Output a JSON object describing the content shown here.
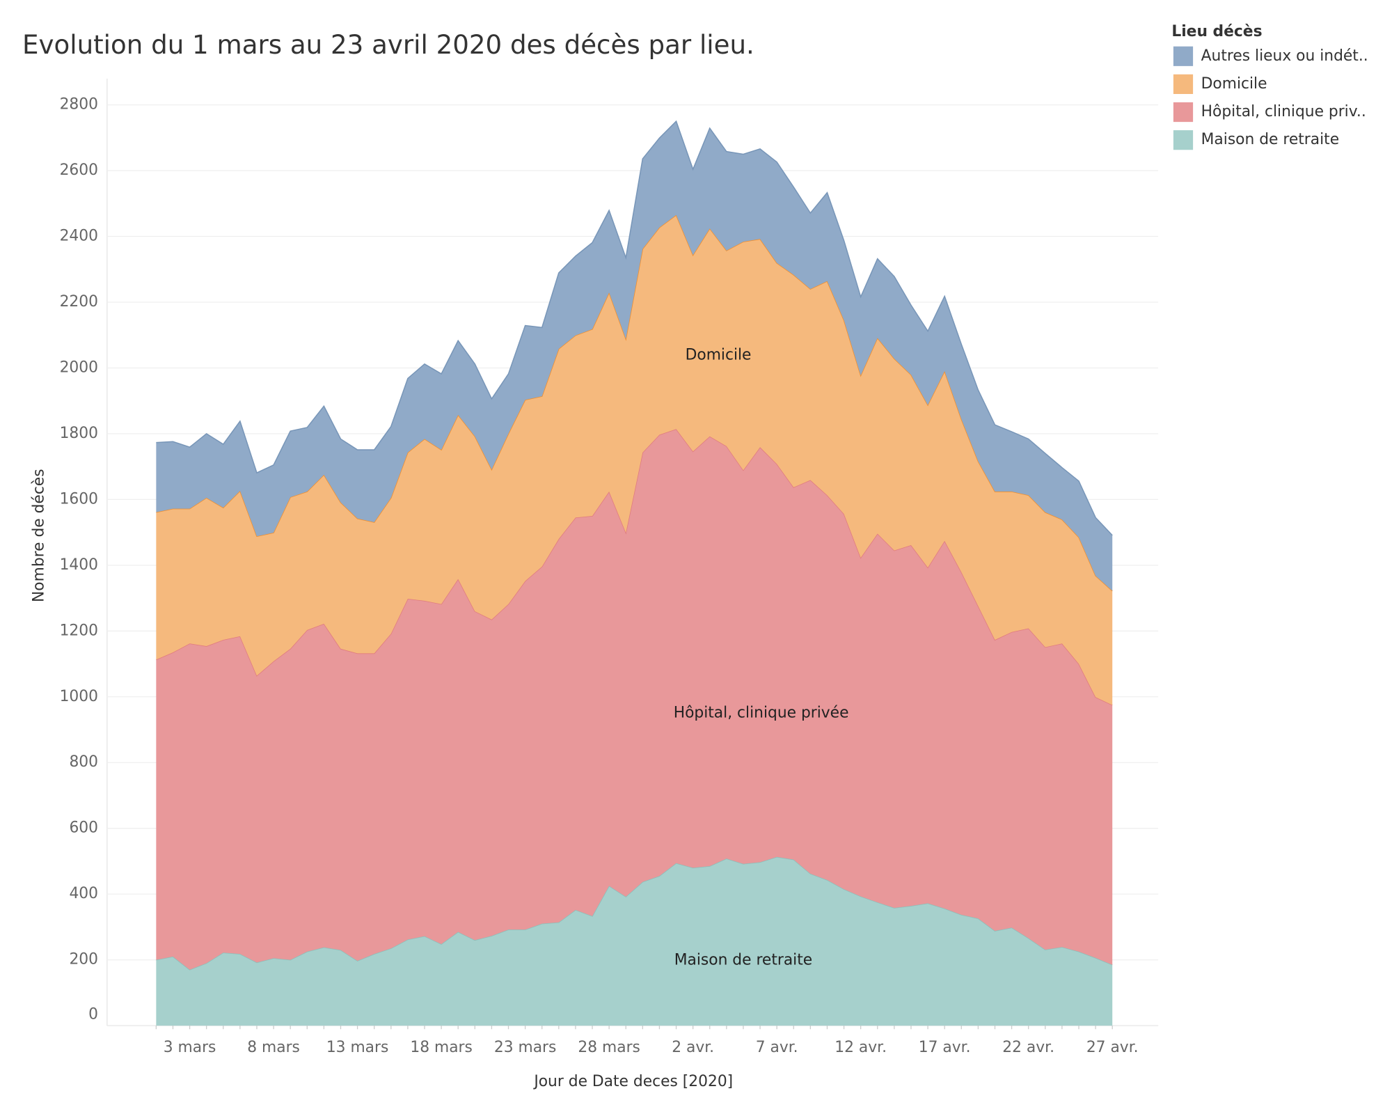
{
  "chart_data": {
    "type": "stacked-area",
    "title": "Evolution du 1 mars au 23 avril 2020 des décès par lieu.",
    "x_label": "Jour de Date deces [2020]",
    "y_label": "Nombre de décès",
    "legend_title": "Lieu décès",
    "categories": [
      null,
      null,
      "3 mars",
      null,
      null,
      null,
      null,
      "8 mars",
      null,
      null,
      null,
      null,
      "13 mars",
      null,
      null,
      null,
      null,
      "18 mars",
      null,
      null,
      null,
      null,
      "23 mars",
      null,
      null,
      null,
      null,
      "28 mars",
      null,
      null,
      null,
      null,
      "2 avr.",
      null,
      null,
      null,
      null,
      "7 avr.",
      null,
      null,
      null,
      null,
      "12 avr.",
      null,
      null,
      null,
      null,
      "17 avr.",
      null,
      null,
      null,
      null,
      "22 avr.",
      null,
      null,
      null,
      null,
      "27 avr."
    ],
    "series": [
      {
        "name": "Autres lieux ou indét..",
        "color": "#90aac8",
        "line": "#7896b8",
        "values": [
          212,
          204,
          187,
          195,
          193,
          212,
          193,
          206,
          201,
          195,
          209,
          193,
          209,
          220,
          217,
          225,
          228,
          231,
          226,
          220,
          215,
          182,
          226,
          209,
          231,
          241,
          263,
          250,
          247,
          274,
          272,
          285,
          261,
          305,
          301,
          266,
          274,
          307,
          267,
          231,
          269,
          242,
          239,
          241,
          250,
          212,
          225,
          228,
          228,
          217,
          203,
          182,
          171,
          179,
          158,
          171,
          177,
          169
        ]
      },
      {
        "name": "Domicile",
        "color": "#f5b97d",
        "line": "#f28e2b",
        "values": [
          448,
          437,
          410,
          451,
          402,
          442,
          424,
          391,
          461,
          421,
          453,
          445,
          410,
          399,
          413,
          445,
          492,
          469,
          499,
          532,
          456,
          518,
          551,
          518,
          578,
          554,
          568,
          605,
          589,
          619,
          630,
          651,
          597,
          632,
          595,
          695,
          633,
          611,
          646,
          581,
          651,
          589,
          554,
          595,
          583,
          518,
          494,
          516,
          465,
          440,
          451,
          427,
          405,
          410,
          377,
          385,
          369,
          347
        ]
      },
      {
        "name": "Hôpital, clinique priv..",
        "color": "#e8989a",
        "line": "#e07b7f",
        "values": [
          913,
          925,
          992,
          964,
          951,
          966,
          872,
          903,
          946,
          978,
          984,
          916,
          935,
          914,
          957,
          1036,
          1020,
          1034,
          1073,
          1000,
          962,
          990,
          1060,
          1086,
          1166,
          1193,
          1217,
          1199,
          1107,
          1306,
          1342,
          1320,
          1266,
          1307,
          1254,
          1197,
          1262,
          1195,
          1132,
          1197,
          1170,
          1141,
          1030,
          1121,
          1087,
          1097,
          1021,
          1118,
          1042,
          950,
          885,
          899,
          942,
          920,
          923,
          875,
          793,
          790
        ]
      },
      {
        "name": "Maison de retraite",
        "color": "#a6d0cc",
        "line": "#8cbfba",
        "values": [
          200,
          210,
          170,
          190,
          222,
          218,
          192,
          205,
          200,
          225,
          238,
          230,
          197,
          218,
          235,
          262,
          272,
          248,
          285,
          260,
          273,
          292,
          292,
          310,
          314,
          352,
          333,
          425,
          392,
          437,
          455,
          494,
          480,
          485,
          508,
          492,
          497,
          513,
          505,
          462,
          443,
          415,
          393,
          375,
          358,
          364,
          372,
          356,
          337,
          326,
          288,
          298,
          266,
          231,
          239,
          225,
          206,
          185
        ]
      }
    ],
    "annotations": [
      {
        "text": "Domicile",
        "series": 1
      },
      {
        "text": "Hôpital, clinique privée",
        "series": 2
      },
      {
        "text": "Maison de retraite",
        "series": 3
      }
    ],
    "ylim": [
      0,
      2880
    ],
    "yticks": [
      0,
      200,
      400,
      600,
      800,
      1000,
      1200,
      1400,
      1600,
      1800,
      2000,
      2200,
      2400,
      2600,
      2800
    ],
    "grid": true
  }
}
